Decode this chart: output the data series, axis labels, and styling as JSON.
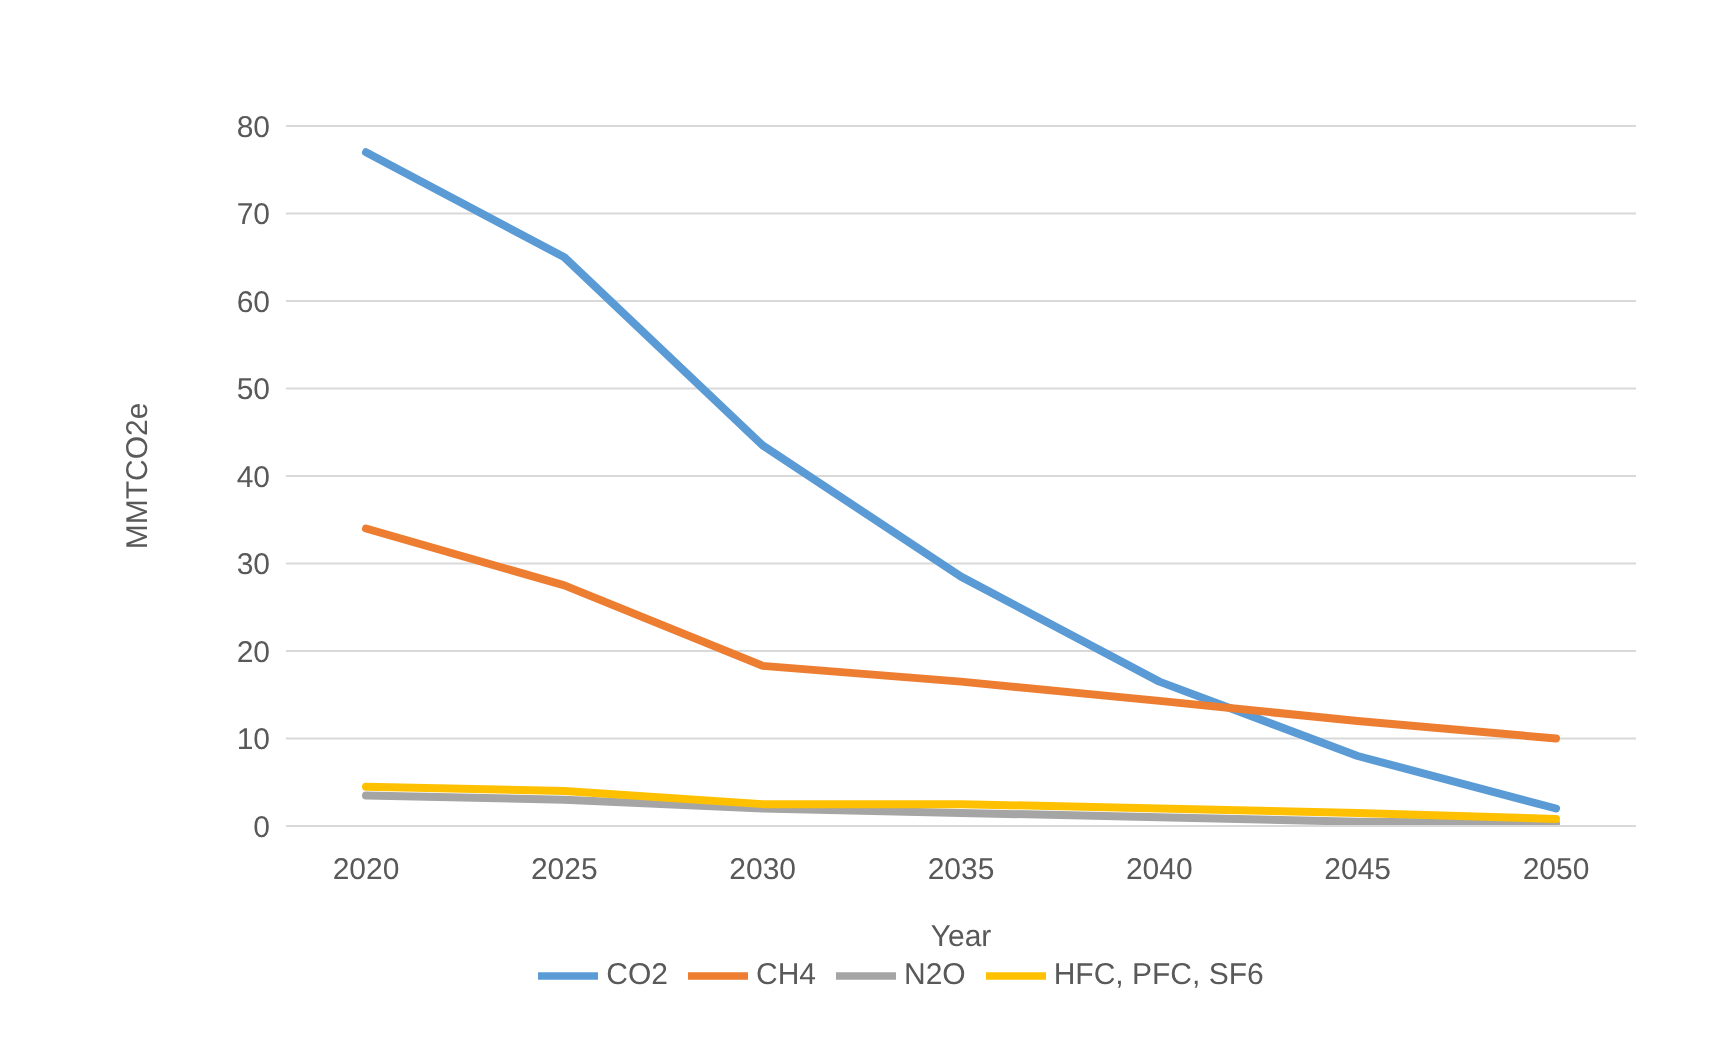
{
  "chart_data": {
    "type": "line",
    "xlabel": "Year",
    "ylabel": "MMTCO2e",
    "categories": [
      "2020",
      "2025",
      "2030",
      "2035",
      "2040",
      "2045",
      "2050"
    ],
    "series": [
      {
        "name": "CO2",
        "color": "#5b9bd5",
        "values": [
          77,
          65,
          43.5,
          28.5,
          16.5,
          8,
          2
        ]
      },
      {
        "name": "CH4",
        "color": "#ed7d31",
        "values": [
          34,
          27.5,
          18.3,
          16.5,
          14.3,
          12,
          10
        ]
      },
      {
        "name": "N2O",
        "color": "#a5a5a5",
        "values": [
          3.5,
          3,
          2,
          1.5,
          1,
          0.5,
          0.3
        ]
      },
      {
        "name": "HFC, PFC, SF6",
        "color": "#ffc000",
        "values": [
          4.5,
          4,
          2.5,
          2.5,
          2,
          1.5,
          0.8
        ]
      }
    ],
    "ylim": [
      0,
      80
    ],
    "yticks": [
      0,
      10,
      20,
      30,
      40,
      50,
      60,
      70,
      80
    ],
    "grid": "y",
    "legend": "bottom",
    "marker": "none",
    "line_style": "solid"
  }
}
